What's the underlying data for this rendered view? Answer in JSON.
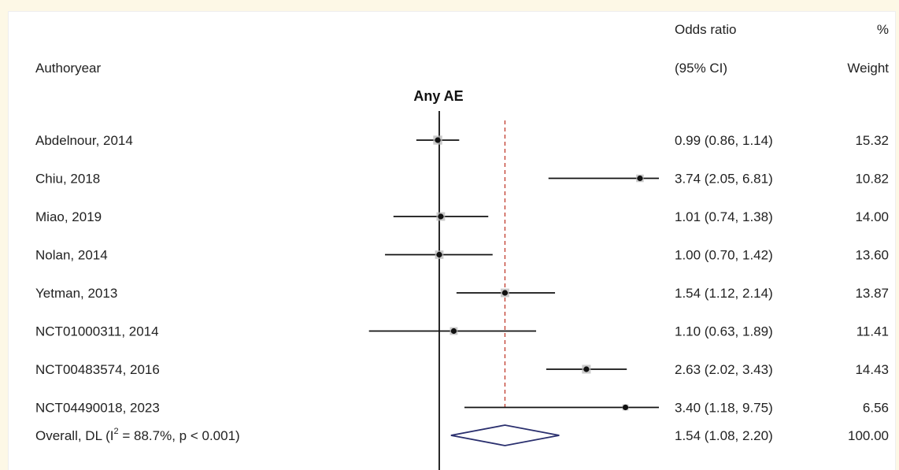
{
  "chart_data": {
    "type": "forest",
    "subgroup_title": "Any AE",
    "headers": {
      "study": "Authoryear",
      "effect_line1": "Odds ratio",
      "effect_line2": "(95% CI)",
      "weight_line1": "%",
      "weight_line2": "Weight"
    },
    "x_scale": "log",
    "reference_value": 1,
    "overall_line_value": 1.54,
    "studies": [
      {
        "label": "Abdelnour, 2014",
        "or": 0.99,
        "lo": 0.86,
        "hi": 1.14,
        "ci_text": "0.99 (0.86, 1.14)",
        "weight": "15.32"
      },
      {
        "label": "Chiu, 2018",
        "or": 3.74,
        "lo": 2.05,
        "hi": 6.81,
        "ci_text": "3.74 (2.05, 6.81)",
        "weight": "10.82"
      },
      {
        "label": "Miao, 2019",
        "or": 1.01,
        "lo": 0.74,
        "hi": 1.38,
        "ci_text": "1.01 (0.74, 1.38)",
        "weight": "14.00"
      },
      {
        "label": "Nolan, 2014",
        "or": 1.0,
        "lo": 0.7,
        "hi": 1.42,
        "ci_text": "1.00 (0.70, 1.42)",
        "weight": "13.60"
      },
      {
        "label": "Yetman, 2013",
        "or": 1.54,
        "lo": 1.12,
        "hi": 2.14,
        "ci_text": "1.54 (1.12, 2.14)",
        "weight": "13.87"
      },
      {
        "label": "NCT01000311, 2014",
        "or": 1.1,
        "lo": 0.63,
        "hi": 1.89,
        "ci_text": "1.10 (0.63, 1.89)",
        "weight": "11.41"
      },
      {
        "label": "NCT00483574, 2016",
        "or": 2.63,
        "lo": 2.02,
        "hi": 3.43,
        "ci_text": "2.63 (2.02, 3.43)",
        "weight": "14.43"
      },
      {
        "label": "NCT04490018, 2023",
        "or": 3.4,
        "lo": 1.18,
        "hi": 9.75,
        "ci_text": "3.40 (1.18, 9.75)",
        "weight": "6.56"
      }
    ],
    "overall": {
      "label_prefix": "Overall, DL (I",
      "label_sup": "2",
      "label_suffix": " = 88.7%, p < 0.001)",
      "or": 1.54,
      "lo": 1.08,
      "hi": 2.2,
      "ci_text": "1.54 (1.08, 2.20)",
      "weight": "100.00"
    },
    "colors": {
      "ci_line": "#111111",
      "point": "#111111",
      "weight_box": "#b8b8b8",
      "overall_diamond": "#2a2f6e",
      "overall_dashed_line": "#c0392b"
    }
  }
}
